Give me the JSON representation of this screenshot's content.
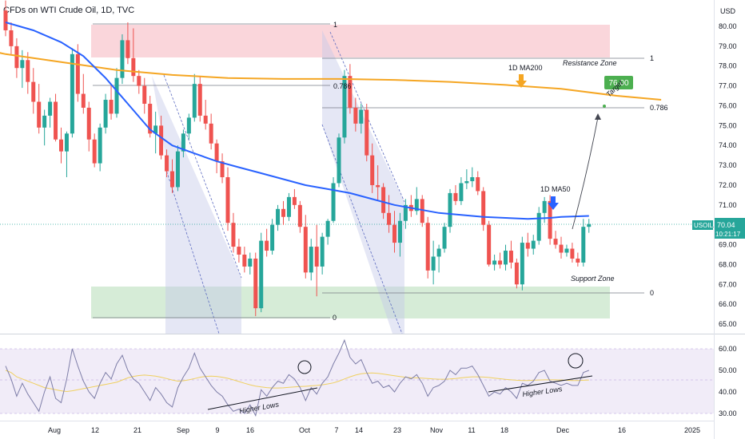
{
  "header": {
    "title": "CFDs on WTI Crude Oil, 1D, TVC",
    "currency": "USD"
  },
  "colors": {
    "up": "#26a69a",
    "down": "#ef5350",
    "ma50": "#2962ff",
    "ma200": "#f5a623",
    "rsi": "#7e7ea8",
    "rsi_ma": "#f0d060",
    "resistance_zone": "#f8c4cc",
    "support_zone": "#c8e6c9",
    "channel": "#c5cae9",
    "rsi_band": "#ede7f6",
    "target": "#4caf50"
  },
  "price_badge": {
    "symbol": "USOIL",
    "price": "70.04",
    "countdown": "10:21:17"
  },
  "target_badge": "76.00",
  "chart_data": {
    "type": "candlestick",
    "title": "CFDs on WTI Crude Oil, 1D, TVC",
    "ylim": [
      64.6,
      80.7
    ],
    "y_ticks": [
      "80.00",
      "79.00",
      "78.00",
      "77.00",
      "76.00",
      "75.00",
      "74.00",
      "73.00",
      "72.00",
      "71.00",
      "70.00",
      "69.00",
      "68.00",
      "67.00",
      "66.00",
      "65.00"
    ],
    "x_ticks": [
      "Aug",
      "12",
      "21",
      "Sep",
      "9",
      "16",
      "Oct",
      "7",
      "14",
      "23",
      "Nov",
      "11",
      "18",
      "Dec",
      "16",
      "2025"
    ],
    "candles": [
      [
        80.8,
        81.3,
        79.5,
        79.8
      ],
      [
        79.8,
        80.2,
        78.6,
        79.0
      ],
      [
        79.0,
        79.4,
        77.4,
        77.9
      ],
      [
        77.9,
        78.8,
        76.9,
        78.3
      ],
      [
        78.3,
        78.7,
        76.6,
        77.2
      ],
      [
        77.2,
        77.9,
        75.6,
        76.2
      ],
      [
        76.2,
        77.1,
        74.6,
        74.9
      ],
      [
        74.9,
        75.8,
        74.0,
        75.5
      ],
      [
        75.5,
        76.4,
        74.9,
        76.2
      ],
      [
        76.2,
        76.6,
        74.2,
        74.3
      ],
      [
        74.3,
        74.9,
        73.1,
        73.7
      ],
      [
        73.7,
        74.7,
        72.4,
        74.6
      ],
      [
        74.6,
        78.9,
        74.4,
        78.6
      ],
      [
        78.6,
        79.1,
        76.2,
        76.6
      ],
      [
        76.6,
        77.6,
        75.6,
        75.9
      ],
      [
        75.9,
        76.2,
        73.7,
        74.3
      ],
      [
        74.3,
        74.6,
        72.9,
        73.1
      ],
      [
        73.1,
        75.1,
        72.7,
        74.9
      ],
      [
        74.9,
        76.6,
        74.6,
        76.3
      ],
      [
        76.3,
        77.1,
        75.3,
        75.6
      ],
      [
        75.6,
        77.9,
        75.4,
        77.4
      ],
      [
        77.4,
        79.6,
        77.1,
        79.3
      ],
      [
        79.3,
        80.2,
        78.1,
        78.4
      ],
      [
        78.4,
        79.9,
        77.2,
        77.5
      ],
      [
        77.5,
        77.8,
        76.6,
        77.0
      ],
      [
        77.0,
        77.4,
        75.6,
        76.1
      ],
      [
        76.1,
        76.5,
        74.4,
        74.6
      ],
      [
        74.6,
        75.7,
        73.6,
        75.0
      ],
      [
        75.0,
        75.5,
        73.3,
        73.5
      ],
      [
        73.5,
        73.8,
        72.4,
        72.7
      ],
      [
        72.7,
        73.3,
        71.6,
        71.9
      ],
      [
        71.9,
        74.0,
        71.7,
        73.7
      ],
      [
        73.7,
        74.8,
        73.4,
        74.6
      ],
      [
        74.6,
        75.6,
        74.3,
        75.4
      ],
      [
        75.4,
        77.6,
        75.2,
        77.1
      ],
      [
        77.1,
        77.5,
        75.2,
        75.5
      ],
      [
        75.5,
        76.3,
        74.8,
        75.1
      ],
      [
        75.1,
        75.6,
        73.8,
        74.1
      ],
      [
        74.1,
        74.3,
        72.6,
        73.2
      ],
      [
        73.2,
        73.6,
        72.1,
        72.4
      ],
      [
        72.4,
        72.9,
        69.7,
        70.1
      ],
      [
        70.1,
        70.6,
        68.6,
        68.9
      ],
      [
        68.9,
        69.3,
        68.1,
        68.5
      ],
      [
        68.5,
        68.9,
        67.6,
        67.9
      ],
      [
        67.9,
        68.6,
        67.5,
        68.3
      ],
      [
        68.3,
        68.6,
        65.4,
        65.8
      ],
      [
        65.8,
        69.6,
        65.6,
        69.2
      ],
      [
        69.2,
        69.8,
        68.4,
        68.7
      ],
      [
        68.7,
        70.3,
        68.5,
        70.0
      ],
      [
        70.0,
        71.0,
        69.7,
        70.8
      ],
      [
        70.8,
        71.2,
        70.0,
        70.4
      ],
      [
        70.4,
        71.6,
        70.2,
        71.4
      ],
      [
        71.4,
        71.8,
        70.8,
        71.0
      ],
      [
        71.0,
        71.2,
        69.6,
        69.9
      ],
      [
        69.9,
        70.5,
        67.3,
        67.6
      ],
      [
        67.6,
        69.3,
        67.2,
        68.9
      ],
      [
        68.9,
        70.0,
        66.4,
        67.9
      ],
      [
        67.9,
        69.6,
        67.5,
        69.4
      ],
      [
        69.4,
        70.3,
        69.0,
        70.2
      ],
      [
        70.2,
        72.4,
        70.1,
        72.1
      ],
      [
        72.1,
        74.6,
        71.9,
        74.4
      ],
      [
        74.4,
        77.8,
        74.1,
        77.5
      ],
      [
        77.5,
        78.1,
        75.6,
        75.9
      ],
      [
        75.9,
        76.4,
        74.7,
        75.1
      ],
      [
        75.1,
        76.1,
        74.6,
        75.8
      ],
      [
        75.8,
        76.1,
        73.2,
        73.5
      ],
      [
        73.5,
        74.1,
        71.6,
        72.0
      ],
      [
        72.0,
        73.0,
        71.2,
        71.9
      ],
      [
        71.9,
        72.1,
        70.3,
        70.6
      ],
      [
        70.6,
        71.5,
        69.6,
        70.0
      ],
      [
        70.0,
        70.7,
        68.6,
        69.1
      ],
      [
        69.1,
        70.6,
        68.4,
        70.2
      ],
      [
        70.2,
        71.3,
        69.8,
        71.0
      ],
      [
        71.0,
        71.5,
        70.4,
        70.7
      ],
      [
        70.7,
        71.9,
        70.5,
        71.3
      ],
      [
        71.3,
        71.5,
        69.9,
        70.1
      ],
      [
        70.1,
        70.4,
        67.3,
        67.7
      ],
      [
        67.7,
        69.2,
        67.0,
        68.4
      ],
      [
        68.4,
        69.0,
        67.6,
        68.8
      ],
      [
        68.8,
        70.1,
        68.6,
        69.9
      ],
      [
        69.9,
        71.8,
        69.6,
        71.6
      ],
      [
        71.6,
        72.0,
        71.0,
        71.2
      ],
      [
        71.2,
        72.4,
        71.0,
        72.1
      ],
      [
        72.1,
        72.8,
        71.8,
        72.2
      ],
      [
        72.2,
        72.9,
        71.9,
        72.4
      ],
      [
        72.4,
        72.7,
        71.5,
        71.7
      ],
      [
        71.7,
        71.9,
        69.7,
        70.0
      ],
      [
        70.0,
        70.2,
        67.9,
        68.0
      ],
      [
        68.0,
        68.5,
        67.7,
        68.2
      ],
      [
        68.2,
        68.6,
        67.8,
        68.0
      ],
      [
        68.0,
        69.0,
        67.7,
        68.7
      ],
      [
        68.7,
        69.2,
        67.8,
        68.1
      ],
      [
        68.1,
        68.3,
        66.8,
        67.0
      ],
      [
        67.0,
        69.4,
        66.7,
        69.1
      ],
      [
        69.1,
        69.6,
        68.4,
        68.8
      ],
      [
        68.8,
        69.5,
        68.5,
        69.2
      ],
      [
        69.2,
        70.9,
        69.0,
        70.6
      ],
      [
        70.6,
        71.4,
        70.1,
        71.2
      ],
      [
        71.2,
        71.5,
        69.0,
        69.3
      ],
      [
        69.3,
        69.7,
        68.8,
        69.0
      ],
      [
        69.0,
        69.4,
        68.3,
        68.6
      ],
      [
        68.6,
        69.0,
        68.4,
        68.8
      ],
      [
        68.8,
        69.1,
        68.1,
        68.3
      ],
      [
        68.3,
        68.6,
        67.9,
        68.1
      ],
      [
        68.1,
        70.3,
        67.9,
        69.9
      ],
      [
        69.9,
        70.3,
        69.6,
        70.04
      ]
    ],
    "ma50": [
      [
        0,
        80.2
      ],
      [
        5,
        79.8
      ],
      [
        10,
        79.2
      ],
      [
        14,
        78.5
      ],
      [
        18,
        77.4
      ],
      [
        22,
        76.1
      ],
      [
        26,
        74.8
      ],
      [
        30,
        74.0
      ],
      [
        34,
        73.6
      ],
      [
        38,
        73.2
      ],
      [
        42,
        72.9
      ],
      [
        46,
        72.6
      ],
      [
        50,
        72.3
      ],
      [
        54,
        72.0
      ],
      [
        58,
        71.8
      ],
      [
        62,
        71.6
      ],
      [
        66,
        71.3
      ],
      [
        70,
        71.0
      ],
      [
        74,
        70.8
      ],
      [
        78,
        70.6
      ],
      [
        82,
        70.5
      ],
      [
        86,
        70.4
      ],
      [
        90,
        70.35
      ],
      [
        94,
        70.3
      ],
      [
        98,
        70.35
      ],
      [
        100,
        70.4
      ],
      [
        105,
        70.45
      ]
    ],
    "ma200": [
      [
        -10,
        79.2
      ],
      [
        0,
        78.6
      ],
      [
        10,
        78.2
      ],
      [
        20,
        77.8
      ],
      [
        30,
        77.55
      ],
      [
        40,
        77.4
      ],
      [
        50,
        77.35
      ],
      [
        60,
        77.35
      ],
      [
        70,
        77.3
      ],
      [
        80,
        77.2
      ],
      [
        90,
        77.05
      ],
      [
        100,
        76.85
      ],
      [
        110,
        76.5
      ],
      [
        118,
        76.3
      ]
    ],
    "rsi": {
      "ylim": [
        27,
        65
      ],
      "y_ticks": [
        "60.00",
        "50.00",
        "40.00",
        "30.00"
      ],
      "values": [
        52,
        46,
        38,
        44,
        39,
        35,
        31,
        40,
        47,
        37,
        35,
        46,
        60,
        52,
        45,
        40,
        37,
        44,
        49,
        46,
        53,
        57,
        50,
        46,
        44,
        40,
        36,
        42,
        39,
        35,
        33,
        42,
        47,
        51,
        58,
        51,
        47,
        43,
        40,
        38,
        34,
        31,
        32,
        30,
        34,
        29,
        41,
        38,
        42,
        45,
        44,
        48,
        46,
        42,
        36,
        42,
        39,
        44,
        47,
        53,
        58,
        64,
        56,
        53,
        55,
        49,
        44,
        45,
        42,
        43,
        40,
        44,
        47,
        46,
        48,
        44,
        38,
        42,
        43,
        45,
        50,
        48,
        51,
        51,
        52,
        48,
        43,
        38,
        40,
        39,
        42,
        40,
        37,
        44,
        43,
        45,
        49,
        50,
        45,
        44,
        43,
        44,
        43,
        43,
        49,
        50
      ],
      "ma": [
        50,
        49,
        47,
        46,
        45,
        44,
        43,
        42,
        41.5,
        41,
        40.5,
        40.2,
        40.5,
        41,
        41.5,
        42,
        42.5,
        43,
        43.5,
        44,
        44.5,
        45.5,
        46.5,
        47.2,
        47.6,
        47.8,
        47.6,
        47.3,
        46.8,
        46.2,
        45.5,
        45,
        45.2,
        45.6,
        46.2,
        46.8,
        47.2,
        47.3,
        47.2,
        46.8,
        46.3,
        45.6,
        44.8,
        44,
        43.3,
        42.7,
        42.3,
        42,
        41.8,
        41.8,
        41.9,
        42.1,
        42.3,
        42.5,
        42.6,
        42.8,
        43,
        43.3,
        43.7,
        44.2,
        45,
        46,
        47,
        47.8,
        48.4,
        48.7,
        48.8,
        48.6,
        48.3,
        47.9,
        47.5,
        47.1,
        46.8,
        46.6,
        46.5,
        46.4,
        46.2,
        46,
        45.9,
        45.9,
        46,
        46.2,
        46.5,
        46.8,
        47,
        47,
        46.9,
        46.7,
        46.4,
        46.1,
        45.8,
        45.6,
        45.4,
        45.3,
        45.3,
        45.4,
        45.5,
        45.6,
        45.6,
        45.6,
        45.5,
        45.4,
        45.3,
        45.3,
        45.4,
        45.5
      ]
    },
    "annotations": {
      "fib_top": "1",
      "fib_786": "0.786",
      "fib_zero": "0",
      "resistance_zone": "Resistance Zone",
      "support_zone": "Support Zone",
      "ma200_label": "1D MA200",
      "ma50_label": "1D MA50",
      "target_label": "Target",
      "higher_lows": "Higher Lows"
    }
  }
}
